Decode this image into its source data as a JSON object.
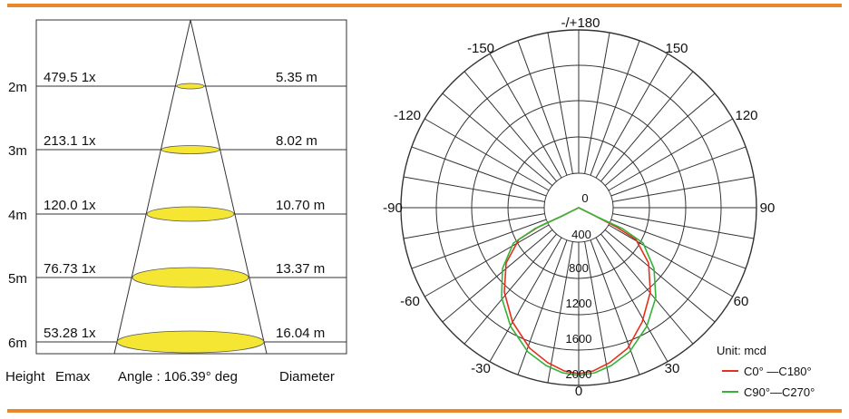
{
  "colors": {
    "accent_rule": "#e8872b",
    "spot_fill": "#f5e633",
    "curve_c0": "#e53020",
    "curve_c90": "#36b336"
  },
  "cone": {
    "rows": [
      {
        "height": "2m",
        "emax": "479.5 1x",
        "diameter": "5.35 m"
      },
      {
        "height": "3m",
        "emax": "213.1 1x",
        "diameter": "8.02 m"
      },
      {
        "height": "4m",
        "emax": "120.0 1x",
        "diameter": "10.70 m"
      },
      {
        "height": "5m",
        "emax": "76.73 1x",
        "diameter": "13.37 m"
      },
      {
        "height": "6m",
        "emax": "53.28 1x",
        "diameter": "16.04 m"
      }
    ],
    "footer": {
      "height_label": "Height",
      "emax_label": "Emax",
      "angle_label": "Angle : 106.39° deg",
      "diameter_label": "Diameter"
    }
  },
  "polar": {
    "angle_labels": {
      "top": "-/+180",
      "upper_left": "-150",
      "upper_right": "150",
      "mid_upper_left": "-120",
      "mid_upper_right": "120",
      "left": "-90",
      "right": "90",
      "lower_left": "-60",
      "lower_right": "60",
      "bottom_left": "-30",
      "bottom_right": "30",
      "bottom": "0"
    },
    "ring_labels": [
      "0",
      "400",
      "800",
      "1200",
      "1600",
      "2000"
    ],
    "unit_label": "Unit:  mcd",
    "legend": [
      {
        "label": "C0° —C180°",
        "color": "#e53020"
      },
      {
        "label": "C90°—C270°",
        "color": "#36b336"
      }
    ]
  }
}
